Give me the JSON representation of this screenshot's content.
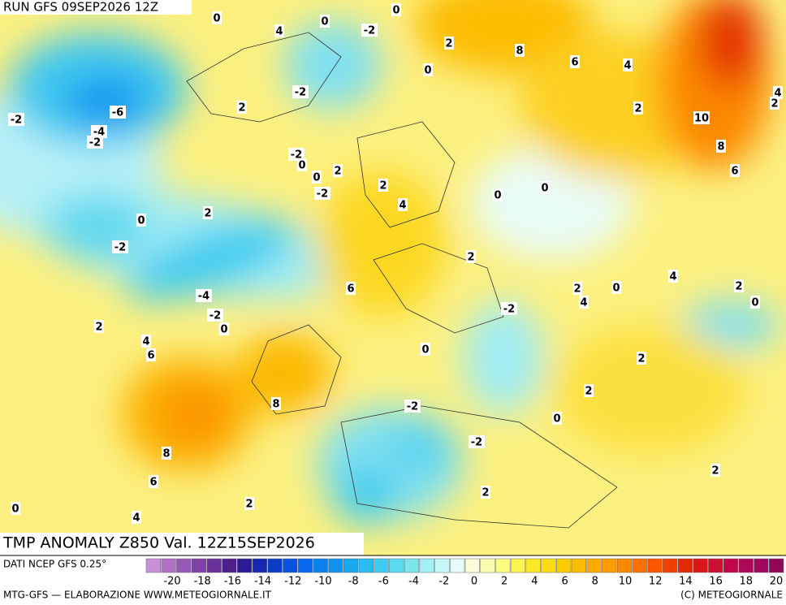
{
  "header": {
    "run": "RUN GFS 09SEP2026 12Z"
  },
  "field_title": "TMP ANOMALY Z850 Val. 12Z15SEP2026",
  "footer": {
    "source": "DATI NCEP GFS 0.25°",
    "credit": "MTG-GFS — ELABORAZIONE WWW.METEOGIORNALE.IT",
    "copyright": "(C) METEOGIORNALE"
  },
  "contour_labels": [
    -2,
    -6,
    -4,
    -2,
    0,
    4,
    0,
    -2,
    0,
    2,
    8,
    6,
    4,
    0,
    -2,
    2,
    2,
    10,
    4,
    2,
    8,
    6,
    -2,
    0,
    0,
    2,
    -2,
    2,
    4,
    0,
    0,
    2,
    0,
    -2,
    2,
    6,
    4,
    2,
    0,
    2,
    4,
    0,
    -4,
    -2,
    -2,
    0,
    2,
    4,
    6,
    0,
    2,
    8,
    -2,
    2,
    0,
    -2,
    8,
    6,
    2,
    2,
    2,
    0,
    4
  ],
  "legend": {
    "ticks": [
      -20,
      -18,
      -16,
      -14,
      -12,
      -10,
      -8,
      -6,
      -4,
      -2,
      0,
      2,
      4,
      6,
      8,
      10,
      12,
      14,
      16,
      18,
      20
    ],
    "colors": [
      "#c890d8",
      "#b070c8",
      "#9858b8",
      "#8040a8",
      "#683098",
      "#4c2088",
      "#2a1a98",
      "#1628b0",
      "#0a3cc8",
      "#0852e0",
      "#0868f0",
      "#0880f0",
      "#1094f0",
      "#18a8f0",
      "#28bcf0",
      "#40ccf0",
      "#5cdaf0",
      "#7ce6f0",
      "#a0f0f4",
      "#c4f8f8",
      "#e4fcfc",
      "#fcfcd8",
      "#fcfcb0",
      "#fcfc80",
      "#fcf450",
      "#fce828",
      "#fcdc10",
      "#fccc00",
      "#fcbc00",
      "#fcac00",
      "#fc9c00",
      "#fc8800",
      "#fc7000",
      "#f85800",
      "#f04000",
      "#e42800",
      "#d81818",
      "#cc1030",
      "#c00848",
      "#b00858",
      "#a00860",
      "#900858"
    ]
  }
}
